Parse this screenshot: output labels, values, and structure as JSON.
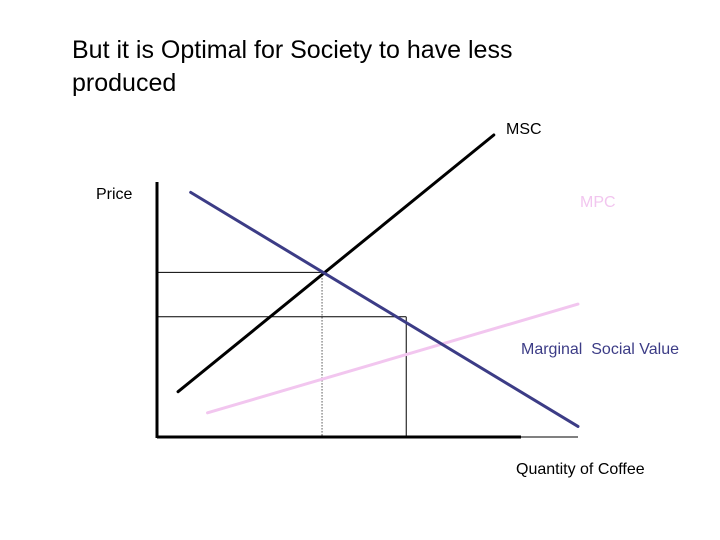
{
  "slide": {
    "title_line1": "But it is Optimal for Society to have less",
    "title_line2": "produced"
  },
  "chart_data": {
    "type": "line",
    "title": "",
    "xlabel": "Quantity of Coffee",
    "ylabel": "Price",
    "xlim": [
      0,
      10
    ],
    "ylim": [
      0,
      10
    ],
    "grid": false,
    "series": [
      {
        "name": "MSC",
        "color": "#000000",
        "x": [
          0.5,
          8.0
        ],
        "y": [
          1.5,
          10.0
        ]
      },
      {
        "name": "MPC",
        "color": "#f2c6ef",
        "x": [
          1.2,
          10.0
        ],
        "y": [
          0.8,
          4.4
        ]
      },
      {
        "name": "Marginal  Social Value",
        "color": "#3c3c86",
        "x": [
          0.8,
          10.0
        ],
        "y": [
          8.1,
          0.35
        ]
      }
    ],
    "annotations": [
      {
        "type": "guide",
        "style": "solid",
        "x": 3.92,
        "y": 5.45
      },
      {
        "type": "guide",
        "style": "dotted",
        "x": 3.92,
        "y": 5.45
      },
      {
        "type": "guide",
        "style": "solid",
        "x": 5.92,
        "y": 3.98
      }
    ]
  }
}
